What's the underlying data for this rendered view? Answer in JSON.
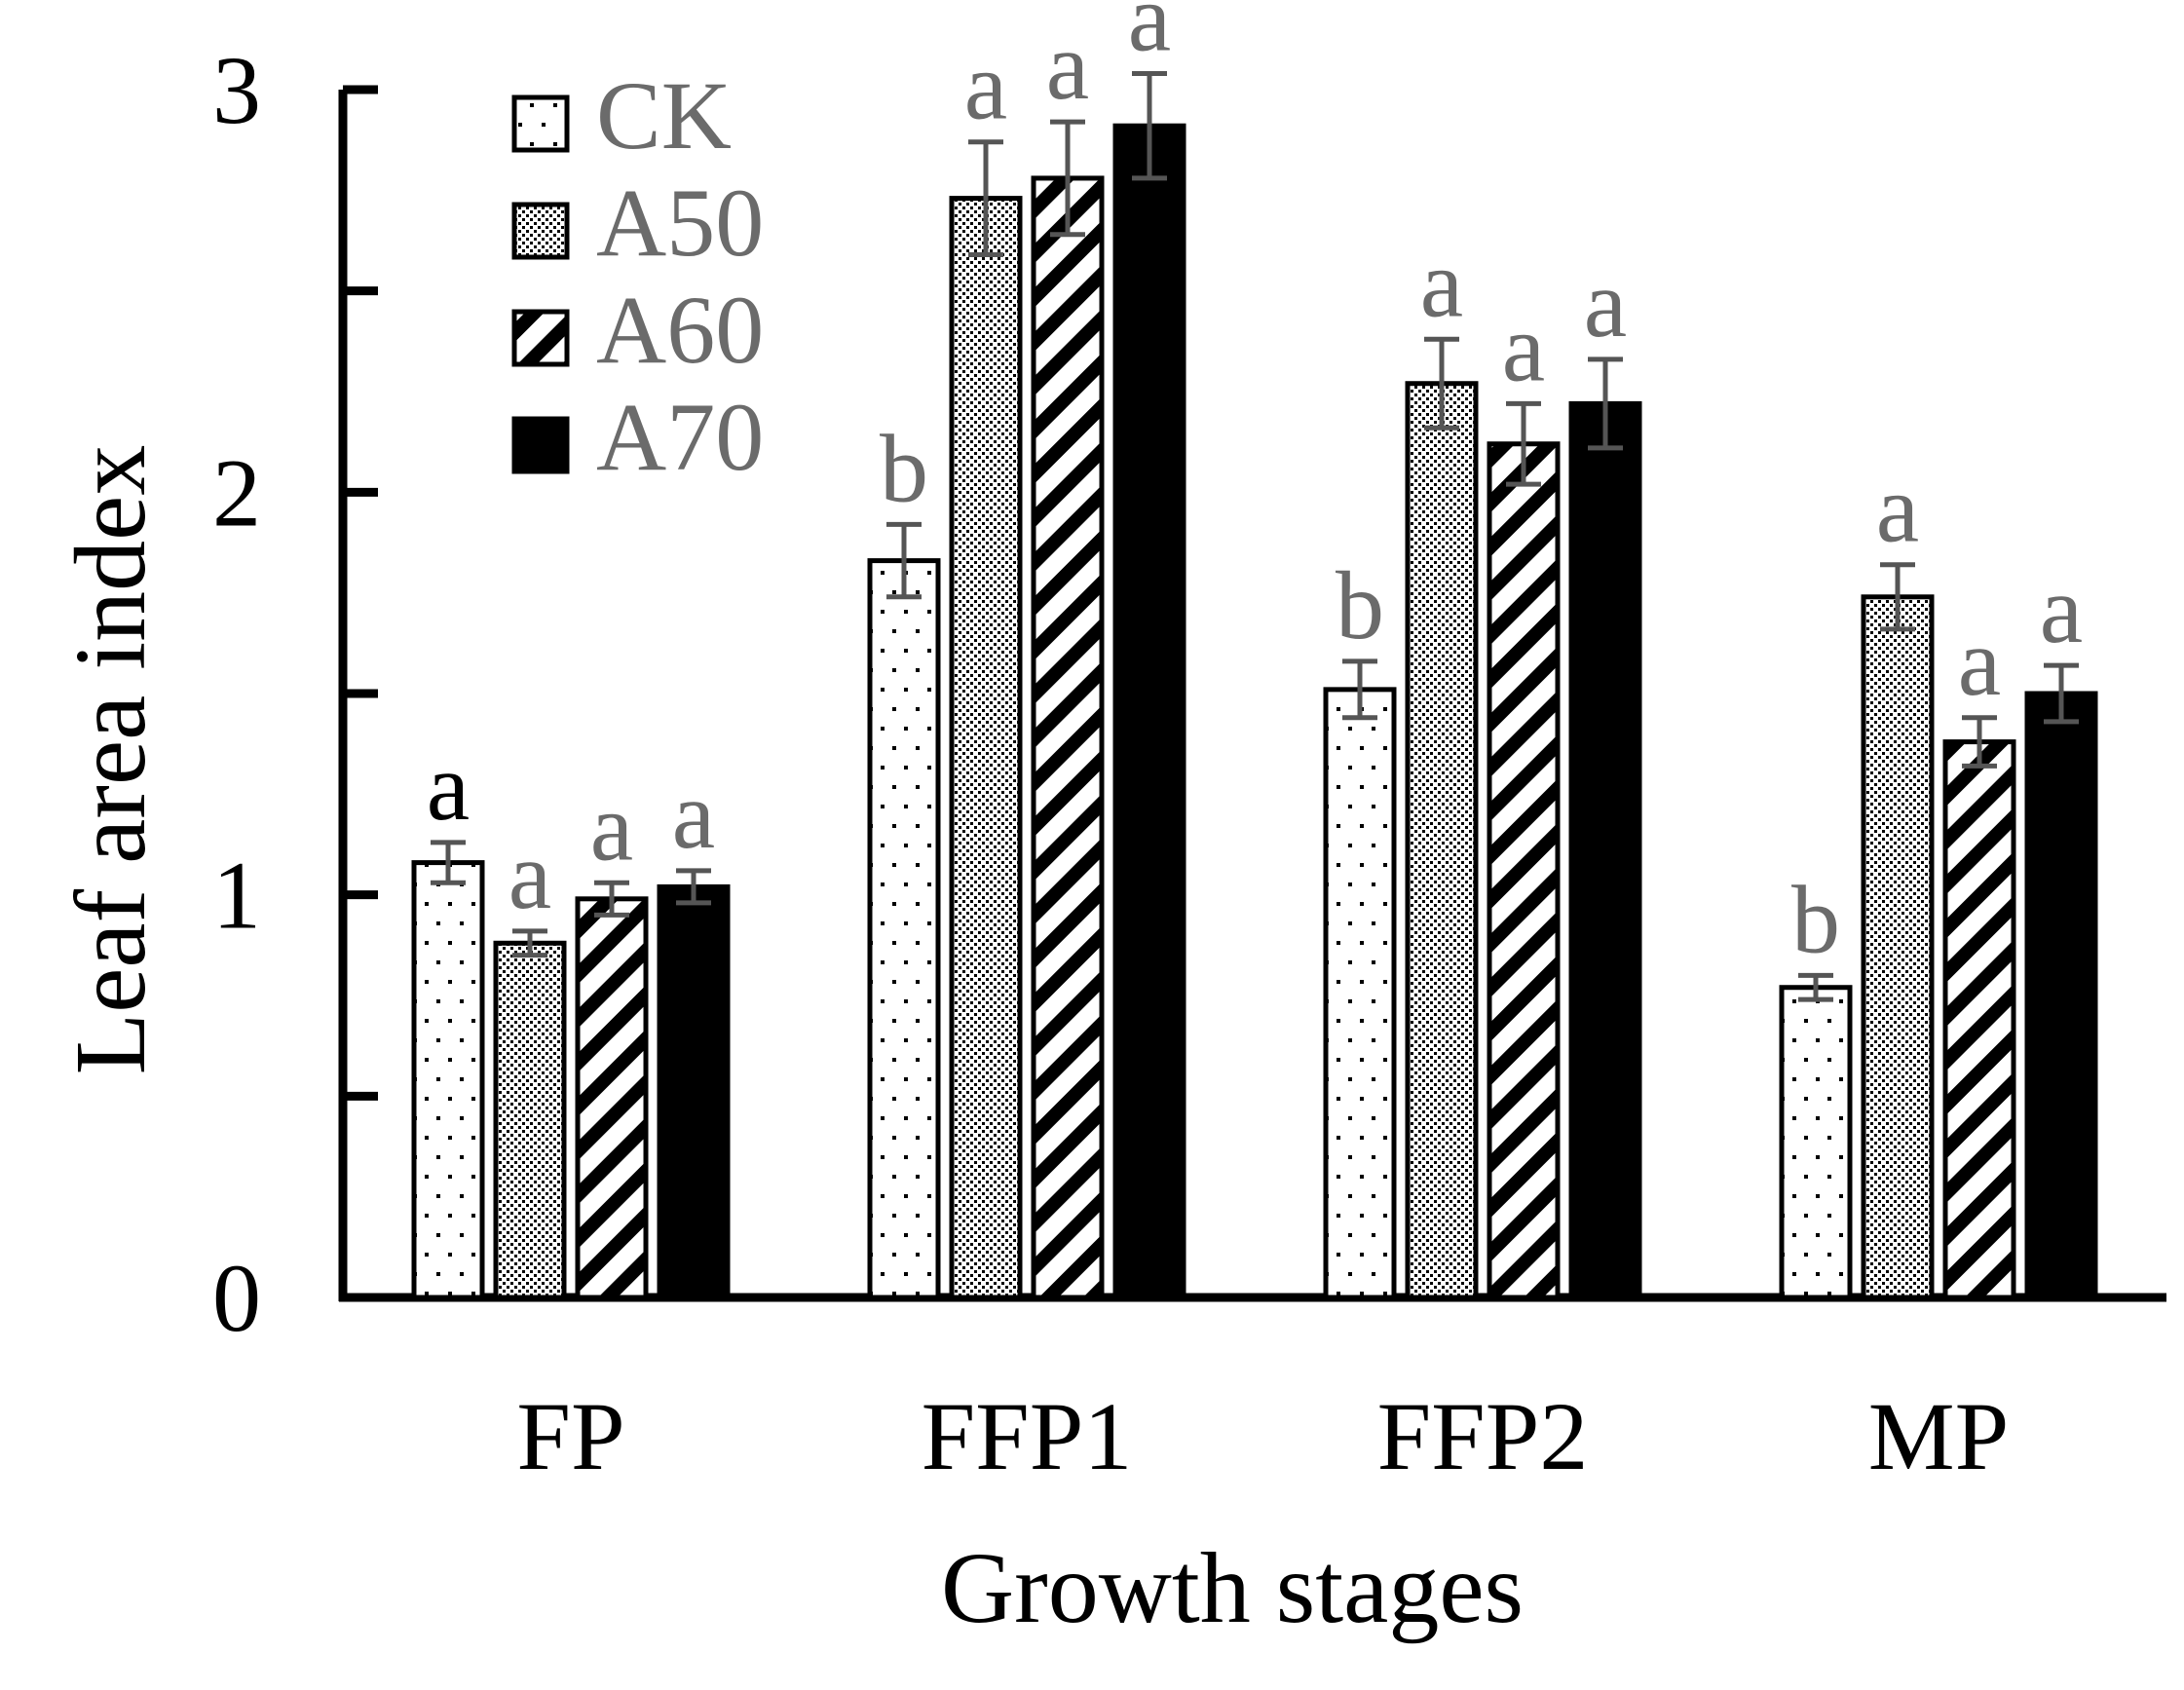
{
  "chart_data": {
    "type": "bar",
    "title": "",
    "xlabel": "Growth stages",
    "ylabel": "Leaf area index",
    "ylim": [
      0,
      3
    ],
    "yticks": [
      0,
      1,
      2,
      3
    ],
    "categories": [
      "FP",
      "FFP1",
      "FFP2",
      "MP"
    ],
    "legend_position": "top-left",
    "series": [
      {
        "name": "CK",
        "pattern": "dots",
        "values": [
          1.08,
          1.83,
          1.51,
          0.77
        ],
        "errors": [
          0.05,
          0.09,
          0.07,
          0.03
        ],
        "letters": [
          "a",
          "b",
          "b",
          "b"
        ]
      },
      {
        "name": "A50",
        "pattern": "stipple",
        "values": [
          0.88,
          2.73,
          2.27,
          1.74
        ],
        "errors": [
          0.03,
          0.14,
          0.11,
          0.08
        ],
        "letters": [
          "a",
          "a",
          "a",
          "a"
        ]
      },
      {
        "name": "A60",
        "pattern": "diagonal",
        "values": [
          0.99,
          2.78,
          2.12,
          1.38
        ],
        "errors": [
          0.04,
          0.14,
          0.1,
          0.06
        ],
        "letters": [
          "a",
          "a",
          "a",
          "a"
        ]
      },
      {
        "name": "A70",
        "pattern": "solid",
        "values": [
          1.02,
          2.91,
          2.22,
          1.5
        ],
        "errors": [
          0.04,
          0.13,
          0.11,
          0.07
        ],
        "letters": [
          "a",
          "a",
          "a",
          "a"
        ]
      }
    ],
    "colors": {
      "axis": "#000000",
      "error_bar": "#555555",
      "legend_text": "#6b6b6b",
      "letter_text": "#6b6b6b",
      "first_letter": "#000000"
    }
  }
}
